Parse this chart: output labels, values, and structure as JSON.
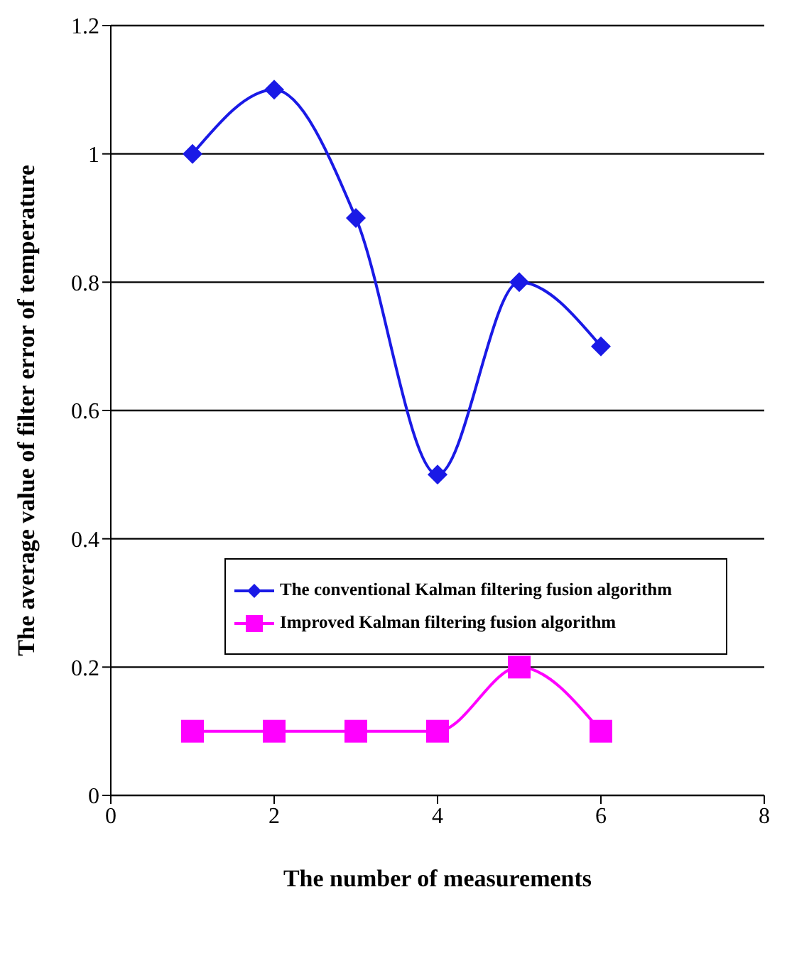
{
  "chart_data": {
    "type": "line",
    "xlabel": "The number of measurements",
    "ylabel": "The average value of filter error of temperature",
    "x": [
      1,
      2,
      3,
      4,
      5,
      6
    ],
    "series": [
      {
        "name": "The conventional Kalman filtering fusion algorithm",
        "color": "#1a1ae6",
        "values": [
          1.0,
          1.1,
          0.9,
          0.5,
          0.8,
          0.7
        ],
        "marker": "diamond"
      },
      {
        "name": "Improved Kalman filtering fusion algorithm",
        "color": "#ff00ff",
        "values": [
          0.1,
          0.1,
          0.1,
          0.1,
          0.2,
          0.1
        ],
        "marker": "square"
      }
    ],
    "xlim": [
      0,
      8
    ],
    "xticks": [
      0,
      2,
      4,
      6,
      8
    ],
    "ylim": [
      0,
      1.2
    ],
    "yticks": [
      0,
      {
        "value": 0.2,
        "label": "0.2"
      },
      {
        "value": 0.4,
        "label": "0.4"
      },
      {
        "value": 0.6,
        "label": "0.6"
      },
      {
        "value": 0.8,
        "label": "0.8"
      },
      1,
      {
        "value": 1.2,
        "label": "1.2"
      }
    ],
    "grid": "y",
    "legend": "left"
  }
}
